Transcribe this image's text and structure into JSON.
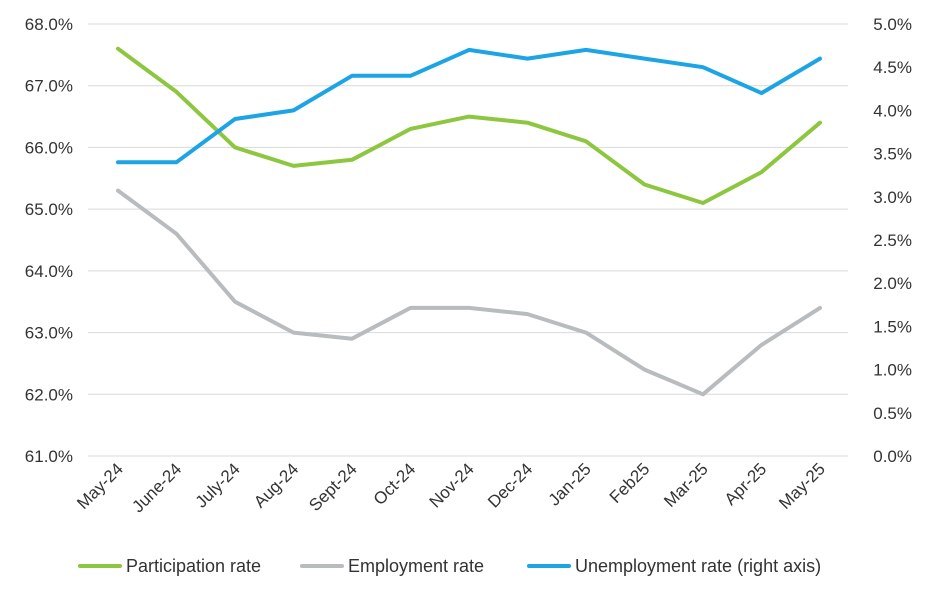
{
  "chart_data": {
    "type": "line",
    "categories": [
      "May-24",
      "June-24",
      "July-24",
      "Aug-24",
      "Sept-24",
      "Oct-24",
      "Nov-24",
      "Dec-24",
      "Jan-25",
      "Feb25",
      "Mar-25",
      "Apr-25",
      "May-25"
    ],
    "left_axis": {
      "ylim": [
        61.0,
        68.0
      ],
      "ticks": [
        "61.0%",
        "62.0%",
        "63.0%",
        "64.0%",
        "65.0%",
        "66.0%",
        "67.0%",
        "68.0%"
      ]
    },
    "right_axis": {
      "ylim": [
        0.0,
        5.0
      ],
      "ticks": [
        "0.0%",
        "0.5%",
        "1.0%",
        "1.5%",
        "2.0%",
        "2.5%",
        "3.0%",
        "3.5%",
        "4.0%",
        "4.5%",
        "5.0%"
      ]
    },
    "grid": true,
    "legend_position": "bottom",
    "series": [
      {
        "name": "Participation rate",
        "axis": "left",
        "color": "#8dc63f",
        "values": [
          67.6,
          66.9,
          66.0,
          65.7,
          65.8,
          66.3,
          66.5,
          66.4,
          66.1,
          65.4,
          65.1,
          65.6,
          66.4
        ]
      },
      {
        "name": "Employment rate",
        "axis": "left",
        "color": "#b8bcbf",
        "values": [
          65.3,
          64.6,
          63.5,
          63.0,
          62.9,
          63.4,
          63.4,
          63.3,
          63.0,
          62.4,
          62.0,
          62.8,
          63.4
        ]
      },
      {
        "name": "Unemployment rate (right axis)",
        "axis": "right",
        "color": "#1ca4e4",
        "values": [
          3.4,
          3.4,
          3.9,
          4.0,
          4.4,
          4.4,
          4.7,
          4.6,
          4.7,
          4.6,
          4.5,
          4.2,
          4.6
        ]
      }
    ]
  }
}
